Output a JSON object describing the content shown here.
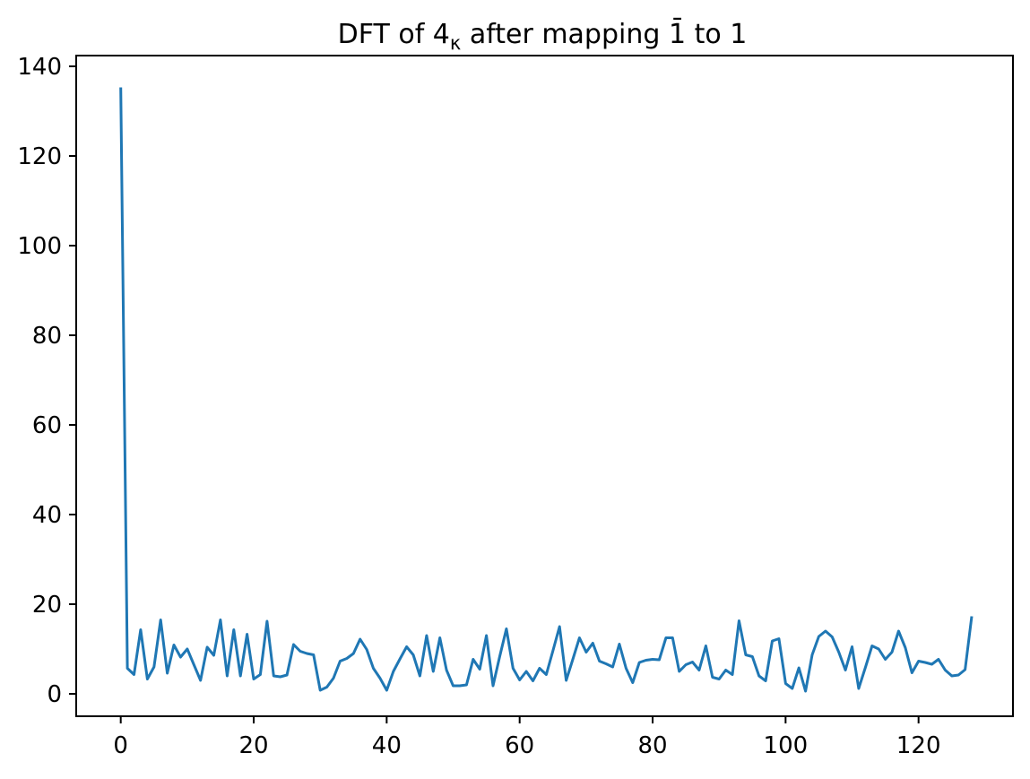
{
  "title": {
    "prefix": "DFT of 4",
    "subscript": "κ",
    "middle": " after mapping ",
    "barred_one": "1̄",
    "suffix": " to 1",
    "full": "DFT of 4κ after mapping 1̄ to 1"
  },
  "colors": {
    "line": "#1f77b4",
    "axis": "#000000",
    "background": "#ffffff"
  },
  "chart_data": {
    "type": "line",
    "title": "DFT of 4κ after mapping 1̄ to 1",
    "xlabel": "",
    "ylabel": "",
    "x_start": 0,
    "x_step": 1,
    "values": [
      135.3,
      5.7,
      4.3,
      14.3,
      3.3,
      6.0,
      16.5,
      4.6,
      10.9,
      8.2,
      10.0,
      6.5,
      3.0,
      10.4,
      8.6,
      16.5,
      4.0,
      14.3,
      4.0,
      13.3,
      3.3,
      4.3,
      16.2,
      4.0,
      3.8,
      4.2,
      11.0,
      9.5,
      9.0,
      8.7,
      0.8,
      1.5,
      3.5,
      7.3,
      7.9,
      9.0,
      12.2,
      9.9,
      5.7,
      3.5,
      0.8,
      5.0,
      7.8,
      10.5,
      8.7,
      4.0,
      13.0,
      5.0,
      12.5,
      5.3,
      1.8,
      1.8,
      2.0,
      7.7,
      5.5,
      13.0,
      1.8,
      8.3,
      14.5,
      5.7,
      3.1,
      5.0,
      2.9,
      5.7,
      4.3,
      9.6,
      15.0,
      3.0,
      7.7,
      12.5,
      9.3,
      11.3,
      7.3,
      6.7,
      6.0,
      11.1,
      5.7,
      2.5,
      7.0,
      7.5,
      7.7,
      7.6,
      12.5,
      12.5,
      5.0,
      6.5,
      7.1,
      5.3,
      10.7,
      3.7,
      3.3,
      5.3,
      4.3,
      16.3,
      8.7,
      8.3,
      4.0,
      2.9,
      11.8,
      12.3,
      2.3,
      1.2,
      5.8,
      0.6,
      8.7,
      12.8,
      14.0,
      12.7,
      9.3,
      5.3,
      10.5,
      1.2,
      5.9,
      10.7,
      10.0,
      7.7,
      9.3,
      14.0,
      10.3,
      4.7,
      7.3,
      7.0,
      6.6,
      7.7,
      5.3,
      4.0,
      4.2,
      5.4,
      17.3
    ],
    "x_ticks": [
      0,
      20,
      40,
      60,
      80,
      100,
      120
    ],
    "y_ticks": [
      0,
      20,
      40,
      60,
      80,
      100,
      120,
      140
    ],
    "xlim": [
      -6.7,
      134.2
    ],
    "ylim": [
      -5.0,
      142.4
    ],
    "grid": false,
    "legend": null
  }
}
